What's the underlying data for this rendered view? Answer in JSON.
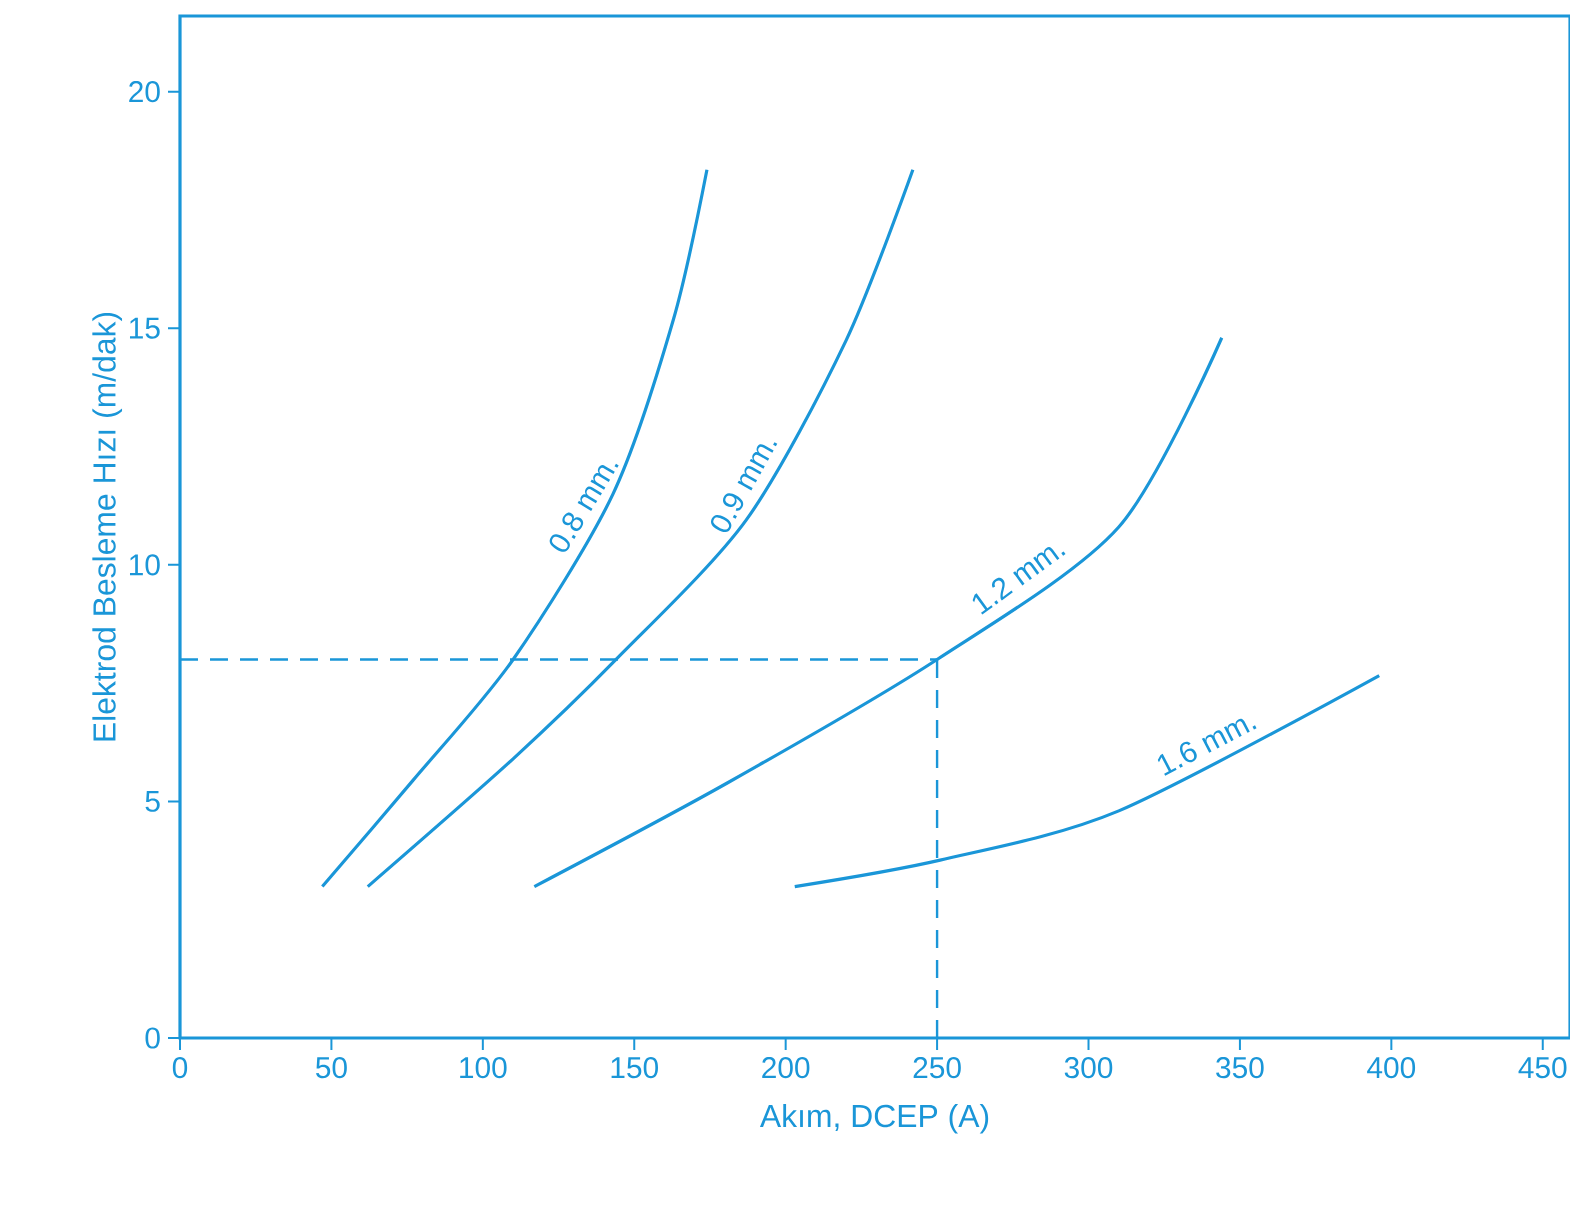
{
  "chart_data": {
    "type": "line",
    "xlabel": "Akım, DCEP (A)",
    "ylabel": "Elektrod Besleme Hızı (m/dak)",
    "xlim": [
      0,
      459
    ],
    "ylim": [
      0,
      21.6
    ],
    "xticks": [
      0,
      50,
      100,
      150,
      200,
      250,
      300,
      350,
      400,
      450
    ],
    "yticks": [
      0,
      5,
      10,
      15,
      20
    ],
    "marker": "none",
    "line_style": "solid",
    "series": [
      {
        "name": "0.8 mm.",
        "color": "#1a96d8",
        "x": [
          47,
          77,
          110,
          143,
          163,
          174
        ],
        "values": [
          3.2,
          5.45,
          8.0,
          11.5,
          15.2,
          18.35
        ]
      },
      {
        "name": "0.9 mm.",
        "color": "#1a96d8",
        "x": [
          62,
          110,
          144,
          187,
          220,
          242
        ],
        "values": [
          3.2,
          5.9,
          8.0,
          10.95,
          14.75,
          18.35
        ]
      },
      {
        "name": "1.2 mm.",
        "color": "#1a96d8",
        "x": [
          117,
          181,
          250,
          310,
          344
        ],
        "values": [
          3.2,
          5.4,
          8.0,
          10.8,
          14.8
        ]
      },
      {
        "name": "1.6 mm.",
        "color": "#1a96d8",
        "x": [
          203,
          251,
          310,
          396
        ],
        "values": [
          3.2,
          3.76,
          4.8,
          7.66
        ]
      }
    ],
    "ref_lines": [
      {
        "axis": "y",
        "value": 8,
        "color": "#1a96d8",
        "line_style": "dashed"
      },
      {
        "axis": "x",
        "value": 250,
        "color": "#1a96d8",
        "line_style": "dashed"
      }
    ]
  }
}
